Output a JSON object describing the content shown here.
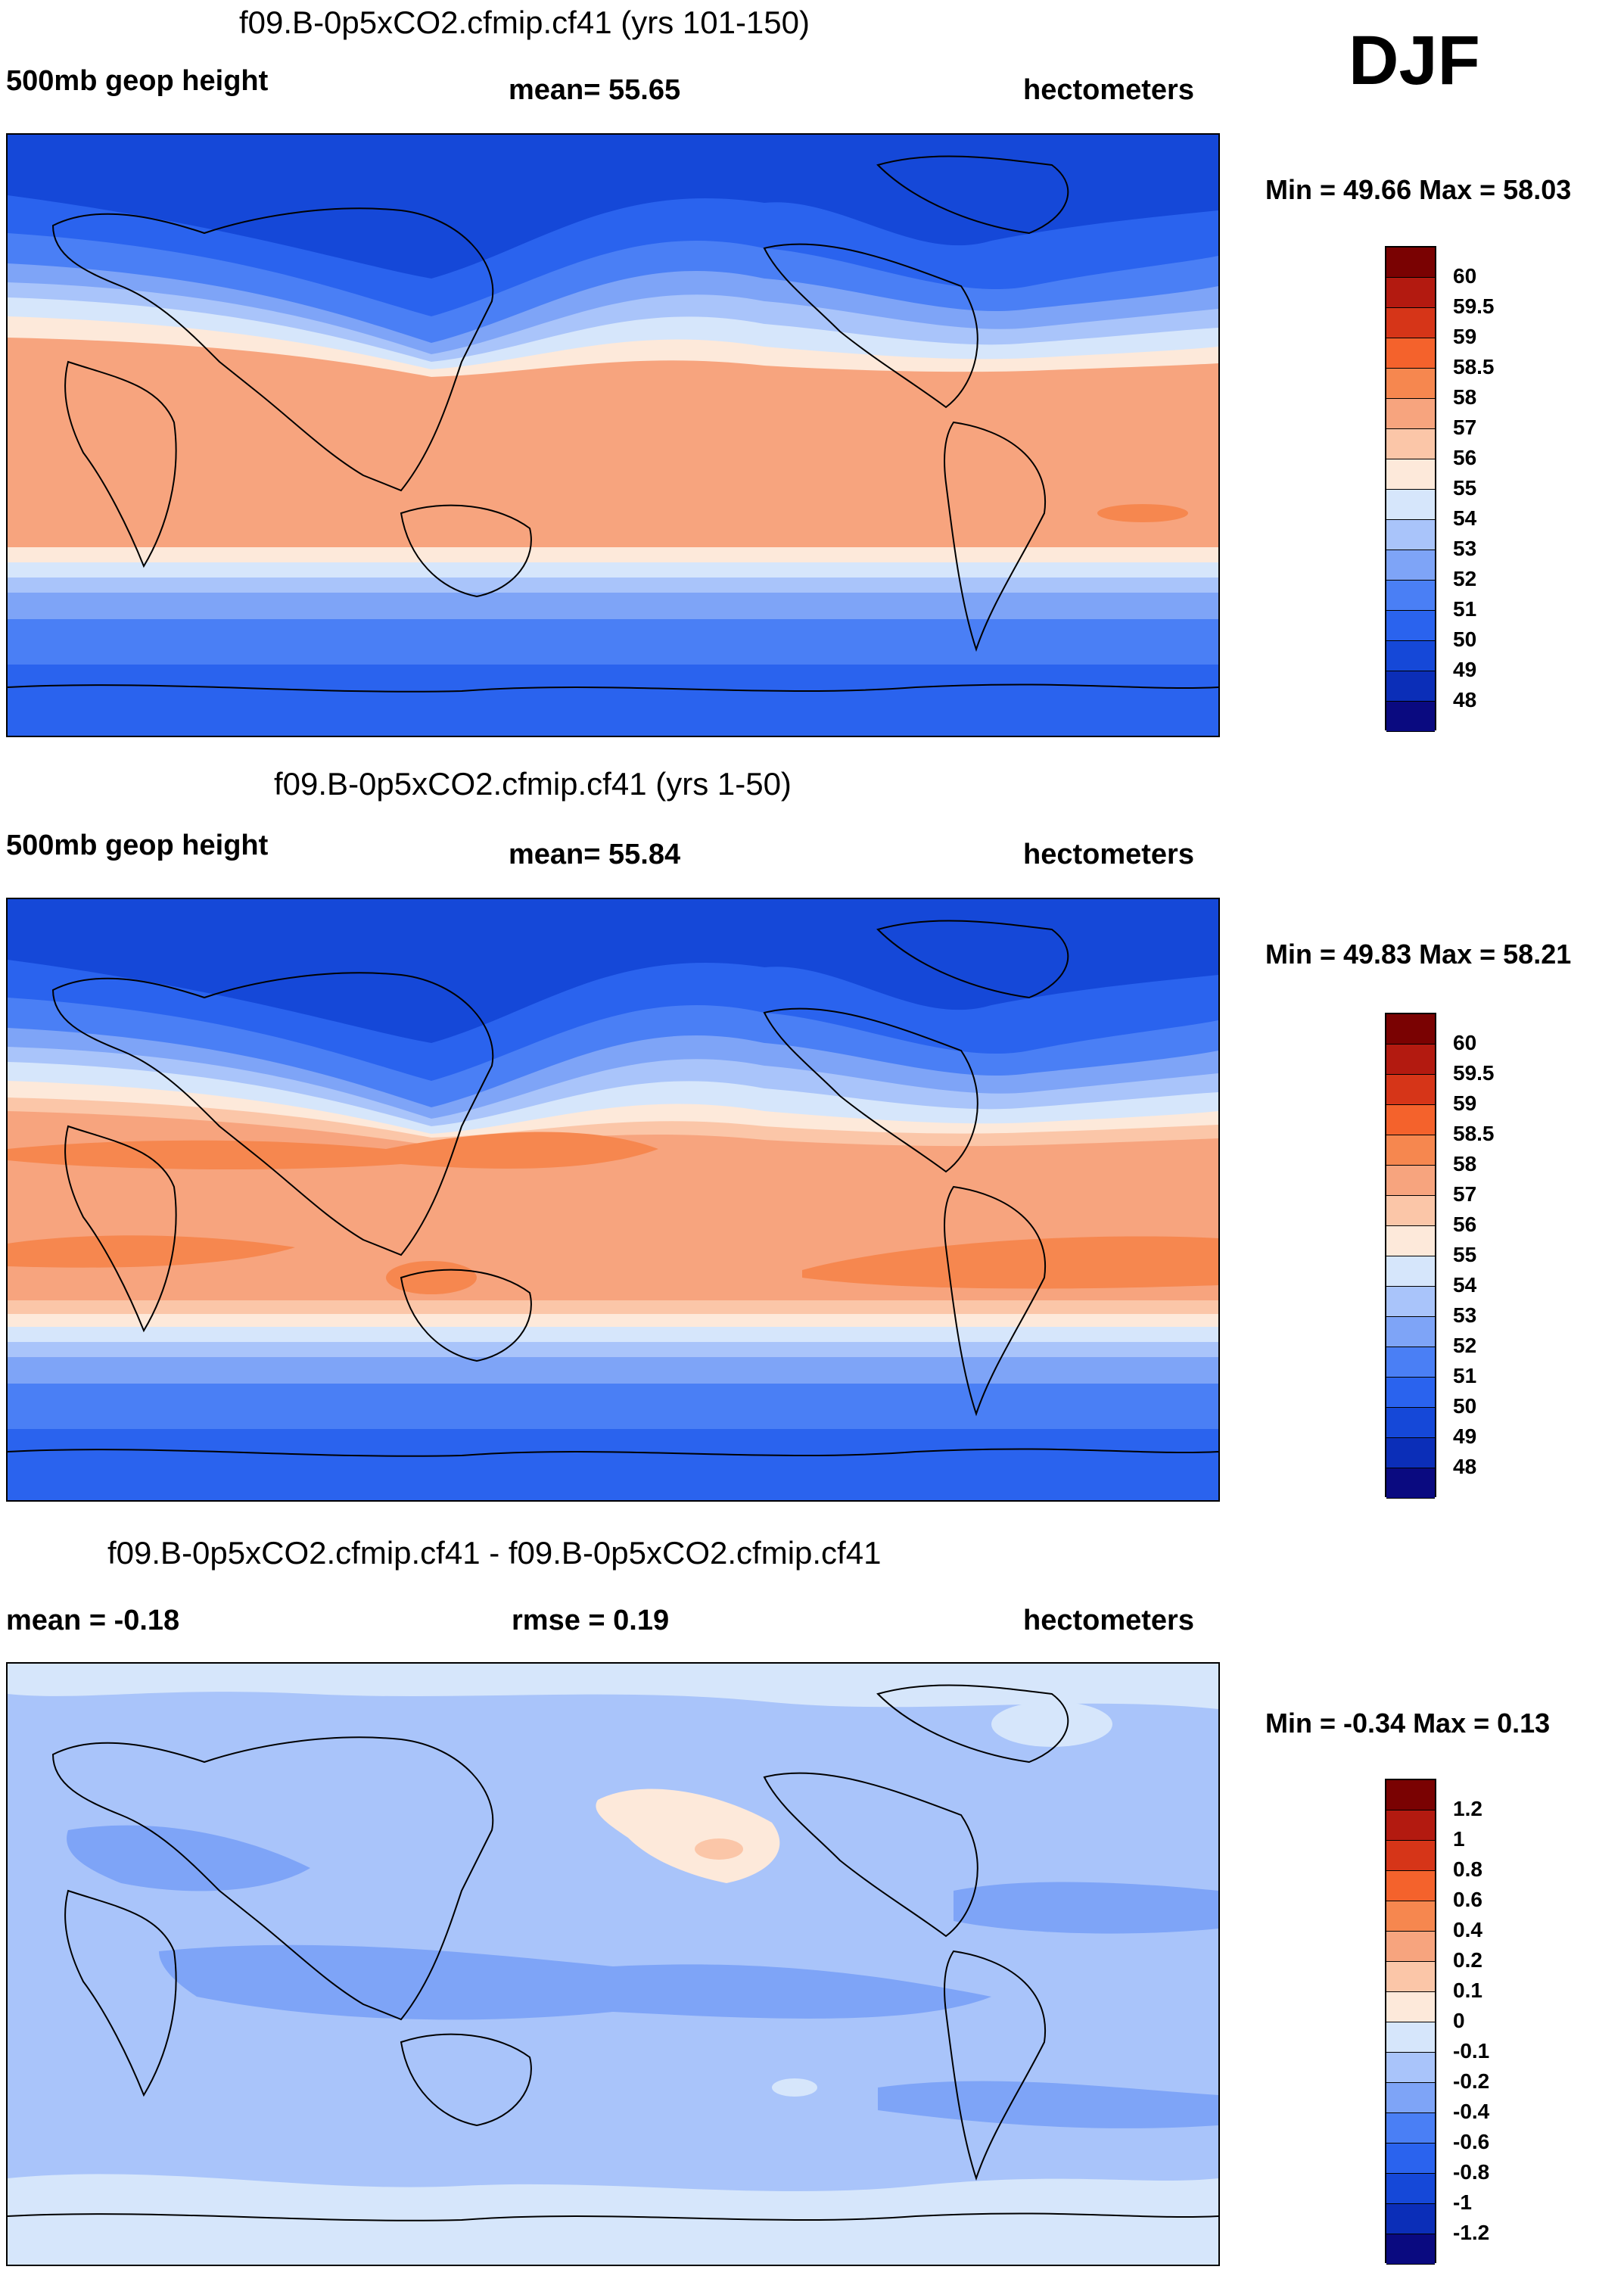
{
  "season": "DJF",
  "colors": {
    "abs_scale": [
      "#0a0a80",
      "#0b2eb8",
      "#1548d8",
      "#2a63ee",
      "#4a7ff5",
      "#7ea4f7",
      "#a9c4fa",
      "#d6e6fb",
      "#fde9da",
      "#fbc6a8",
      "#f7a47e",
      "#f6874f",
      "#f4622c",
      "#d63518",
      "#b31a10",
      "#7a0202"
    ],
    "diff_scale": [
      "#0a0a80",
      "#0b2eb8",
      "#1548d8",
      "#2a63ee",
      "#4a7ff5",
      "#7ea4f7",
      "#a9c4fa",
      "#d6e6fb",
      "#fde9da",
      "#fbc6a8",
      "#f7a47e",
      "#f6874f",
      "#f4622c",
      "#d63518",
      "#b31a10",
      "#7a0202"
    ]
  },
  "chart_data": [
    {
      "type": "heatmap",
      "title": "f09.B-0p5xCO2.cfmip.cf41 (yrs 101-150)",
      "variable": "500mb geop height",
      "stat_label": "mean=  55.65",
      "units": "hectometers",
      "minmax": "Min =  49.66 Max =  58.03",
      "colorbar_ticks": [
        "60",
        "59.5",
        "59",
        "58.5",
        "58",
        "57",
        "56",
        "55",
        "54",
        "53",
        "52",
        "51",
        "50",
        "49",
        "48"
      ]
    },
    {
      "type": "heatmap",
      "title": "f09.B-0p5xCO2.cfmip.cf41 (yrs 1-50)",
      "variable": "500mb geop height",
      "stat_label": "mean=  55.84",
      "units": "hectometers",
      "minmax": "Min =  49.83 Max =  58.21",
      "colorbar_ticks": [
        "60",
        "59.5",
        "59",
        "58.5",
        "58",
        "57",
        "56",
        "55",
        "54",
        "53",
        "52",
        "51",
        "50",
        "49",
        "48"
      ]
    },
    {
      "type": "heatmap",
      "title": "f09.B-0p5xCO2.cfmip.cf41 - f09.B-0p5xCO2.cfmip.cf41",
      "stat_left": "mean =  -0.18",
      "stat_label": "rmse =   0.19",
      "units": "hectometers",
      "minmax": "Min =  -0.34 Max =   0.13",
      "colorbar_ticks": [
        "1.2",
        "1",
        "0.8",
        "0.6",
        "0.4",
        "0.2",
        "0.1",
        "0",
        "-0.1",
        "-0.2",
        "-0.4",
        "-0.6",
        "-0.8",
        "-1",
        "-1.2"
      ]
    }
  ]
}
